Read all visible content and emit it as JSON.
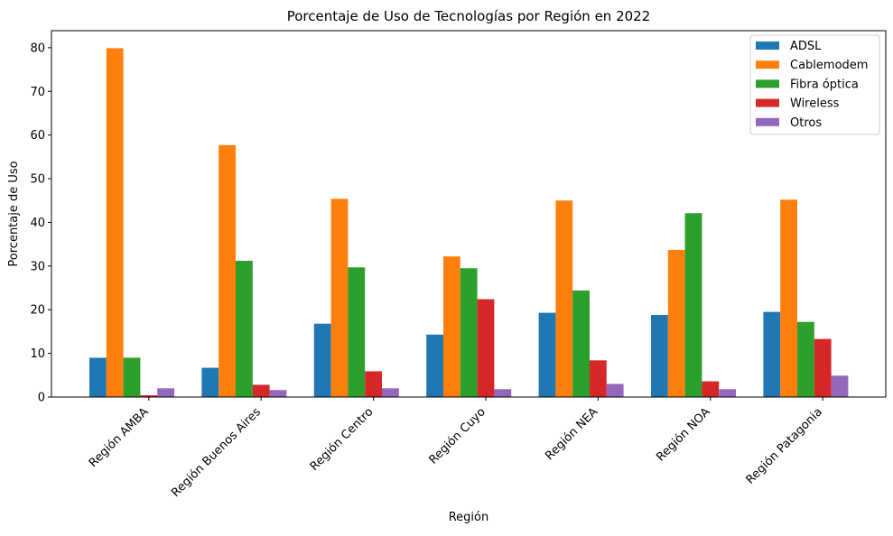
{
  "chart_data": {
    "type": "bar",
    "title": "Porcentaje de Uso de Tecnologías por Región en 2022",
    "xlabel": "Región",
    "ylabel": "Porcentaje de Uso",
    "ylim": [
      0,
      83.9
    ],
    "yticks": [
      0,
      10,
      20,
      30,
      40,
      50,
      60,
      70,
      80
    ],
    "grid": false,
    "legend_position": "top-right",
    "categories": [
      "Región AMBA",
      "Región Buenos Aires",
      "Región Centro",
      "Región Cuyo",
      "Región NEA",
      "Región NOA",
      "Región Patagonia"
    ],
    "series": [
      {
        "name": "ADSL",
        "color": "#1f77b4",
        "values": [
          9.0,
          6.7,
          16.8,
          14.3,
          19.3,
          18.8,
          19.5
        ]
      },
      {
        "name": "Cablemodem",
        "color": "#ff7f0e",
        "values": [
          79.9,
          57.7,
          45.4,
          32.2,
          45.0,
          33.7,
          45.2
        ]
      },
      {
        "name": "Fibra óptica",
        "color": "#2ca02c",
        "values": [
          9.0,
          31.2,
          29.7,
          29.5,
          24.4,
          42.1,
          17.2
        ]
      },
      {
        "name": "Wireless",
        "color": "#d62728",
        "values": [
          0.4,
          2.8,
          5.9,
          22.4,
          8.4,
          3.6,
          13.3
        ]
      },
      {
        "name": "Otros",
        "color": "#9467bd",
        "values": [
          2.0,
          1.6,
          2.0,
          1.8,
          3.0,
          1.8,
          4.9
        ]
      }
    ]
  }
}
